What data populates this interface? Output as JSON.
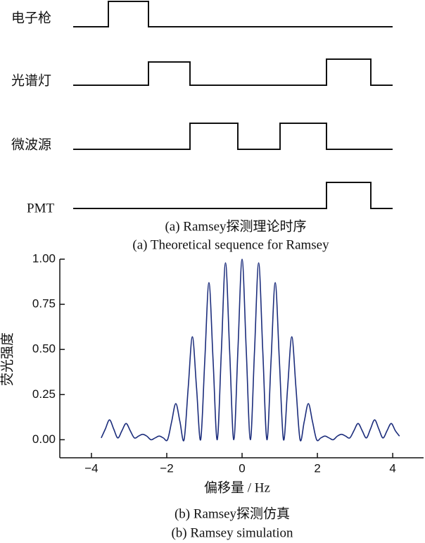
{
  "timing_diagram": {
    "signals": [
      "电子枪",
      "光谱灯",
      "微波源",
      "PMT"
    ],
    "caption": "(a) Ramsey探测理论时序",
    "caption_en": "(a) Theoretical sequence for Ramsey"
  },
  "chart_data": {
    "type": "line",
    "caption": "(b) Ramsey探测仿真",
    "caption_en": "(b) Ramsey simulation",
    "xlabel": "偏移量 / Hz",
    "ylabel": "荧光强度",
    "x": [
      -3.74,
      -3.63,
      -3.52,
      -3.41,
      -3.3,
      -3.19,
      -3.08,
      -2.97,
      -2.86,
      -2.75,
      -2.64,
      -2.53,
      -2.42,
      -2.31,
      -2.2,
      -2.09,
      -1.98,
      -1.87,
      -1.76,
      -1.65,
      -1.54,
      -1.43,
      -1.32,
      -1.21,
      -1.1,
      -0.99,
      -0.88,
      -0.77,
      -0.66,
      -0.55,
      -0.44,
      -0.33,
      -0.22,
      -0.11,
      0,
      0.11,
      0.22,
      0.33,
      0.44,
      0.55,
      0.66,
      0.77,
      0.88,
      0.99,
      1.1,
      1.21,
      1.32,
      1.43,
      1.54,
      1.65,
      1.76,
      1.87,
      1.98,
      2.09,
      2.2,
      2.31,
      2.42,
      2.53,
      2.64,
      2.75,
      2.86,
      2.97,
      3.08,
      3.19,
      3.3,
      3.41,
      3.52,
      3.63,
      3.74,
      3.85,
      3.96,
      4.07,
      4.18
    ],
    "series": [
      {
        "color": "#1c2d7c",
        "values": [
          0.01,
          0.06,
          0.11,
          0.06,
          0.01,
          0.05,
          0.09,
          0.05,
          0.01,
          0.02,
          0.03,
          0.02,
          0,
          0.01,
          0.02,
          0.01,
          0,
          0.1,
          0.2,
          0.1,
          0,
          0.29,
          0.57,
          0.29,
          0,
          0.44,
          0.87,
          0.44,
          0,
          0.49,
          0.98,
          0.49,
          0,
          0.5,
          1,
          0.5,
          0,
          0.49,
          0.98,
          0.49,
          0,
          0.44,
          0.87,
          0.44,
          0,
          0.29,
          0.57,
          0.29,
          0,
          0.1,
          0.2,
          0.1,
          0,
          0.01,
          0.02,
          0.01,
          0,
          0.02,
          0.03,
          0.02,
          0.01,
          0.05,
          0.09,
          0.05,
          0.01,
          0.06,
          0.11,
          0.06,
          0.01,
          0.05,
          0.09,
          0.05,
          0.02
        ]
      }
    ],
    "xlim": [
      -4.84,
      4.82
    ],
    "ylim": [
      -0.1,
      1.0
    ],
    "xticks": [
      {
        "value": -4,
        "label": "−4"
      },
      {
        "value": -2,
        "label": "−2"
      },
      0,
      2,
      4
    ],
    "yticks": [
      {
        "value": 0,
        "label": "0.00"
      },
      {
        "value": 0.25,
        "label": "0.25"
      },
      {
        "value": 0.5,
        "label": "0.50"
      },
      {
        "value": 0.75,
        "label": "0.75"
      },
      {
        "value": 1,
        "label": "1.00"
      }
    ]
  }
}
